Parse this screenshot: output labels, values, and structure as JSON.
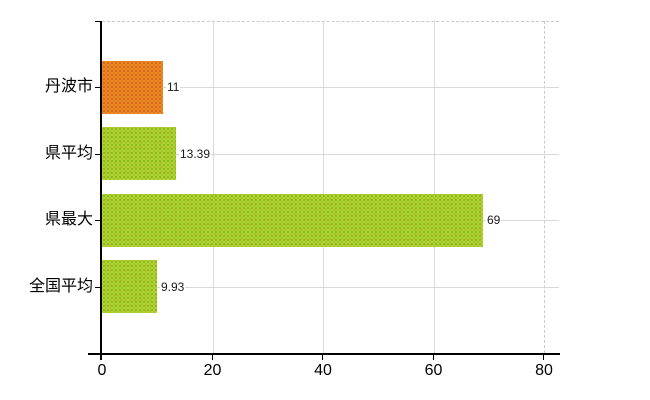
{
  "chart_data": {
    "type": "bar",
    "orientation": "horizontal",
    "title": "",
    "xlabel": "",
    "ylabel": "",
    "categories": [
      "丹波市",
      "県平均",
      "県最大",
      "全国平均"
    ],
    "values": [
      11,
      13.39,
      69,
      9.93
    ],
    "value_labels": [
      "11",
      "13.39",
      "69",
      "9.93"
    ],
    "bar_color_keys": [
      "orange",
      "green",
      "green",
      "green"
    ],
    "xlim": [
      0,
      80
    ],
    "x_ticks": [
      0,
      20,
      40,
      60,
      80
    ],
    "x_tick_labels": [
      "0",
      "20",
      "40",
      "60",
      "80"
    ],
    "grid": "vertical gridlines at x ticks; horizontal gridline at each category center; dashed top and right plot border",
    "legend_position": "none"
  },
  "colors": {
    "background": "#ffffff",
    "orange_base": "#ed8b26",
    "orange_dot1": "#cf5a12",
    "orange_dot2": "#e2781c",
    "green_base": "#b2d636",
    "green_dot1": "#7fae0e",
    "green_dot2": "#9cc226",
    "green_speck": "rgba(196,148,46,0.45)",
    "gridline": "#d9d9d9",
    "plot_border": "#d2c5c5",
    "axis": "#000000",
    "text": "#000000",
    "value_text": "#1a1a1a"
  }
}
